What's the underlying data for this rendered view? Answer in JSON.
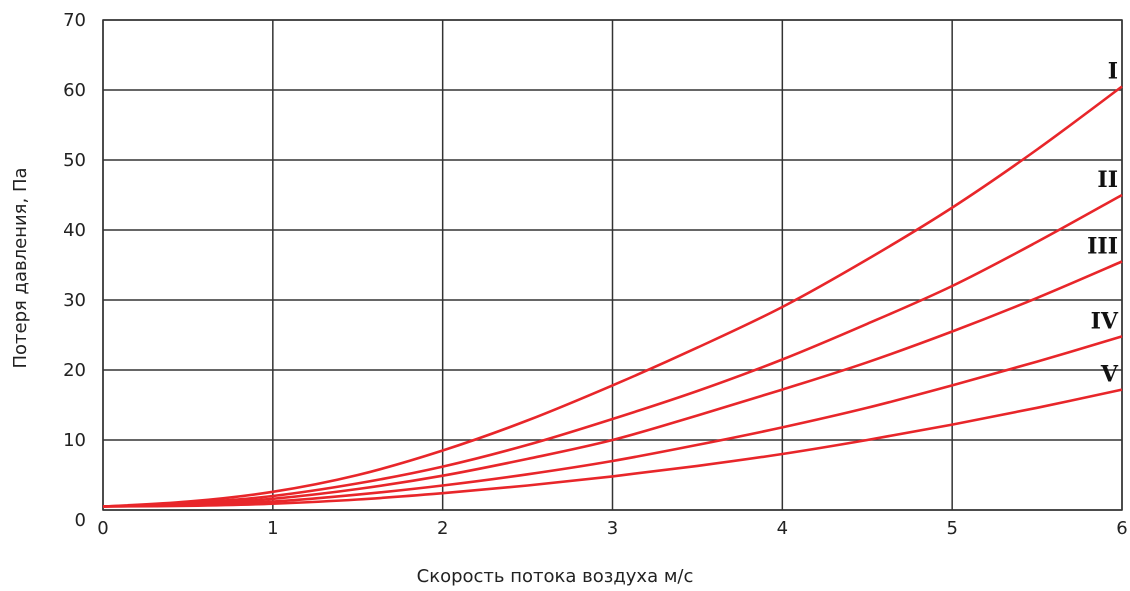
{
  "chart_data": {
    "type": "line",
    "title": "",
    "xlabel": "Скорость потока воздуха м/с",
    "ylabel": "Потеря давления, Па",
    "xlim": [
      0,
      6
    ],
    "ylim": [
      0,
      70
    ],
    "x_ticks": [
      "0",
      "1",
      "2",
      "3",
      "4",
      "5",
      "6"
    ],
    "y_ticks": [
      "0",
      "10",
      "20",
      "30",
      "40",
      "50",
      "60",
      "70"
    ],
    "grid": true,
    "line_color": "#e8262a",
    "x": [
      0,
      0.5,
      1,
      1.5,
      2,
      2.5,
      3,
      3.5,
      4,
      4.5,
      5,
      5.5,
      6
    ],
    "series": [
      {
        "name": "I",
        "values": [
          0.5,
          1.2,
          2.6,
          5.0,
          8.5,
          12.8,
          17.8,
          23.2,
          29.0,
          35.8,
          43.2,
          51.5,
          60.5
        ]
      },
      {
        "name": "II",
        "values": [
          0.5,
          1.0,
          2.0,
          3.8,
          6.2,
          9.3,
          13.0,
          17.0,
          21.5,
          26.6,
          32.0,
          38.3,
          45.0
        ]
      },
      {
        "name": "III",
        "values": [
          0.5,
          0.8,
          1.6,
          3.0,
          4.9,
          7.3,
          10.0,
          13.5,
          17.2,
          21.1,
          25.5,
          30.3,
          35.5
        ]
      },
      {
        "name": "IV",
        "values": [
          0.5,
          0.7,
          1.2,
          2.2,
          3.5,
          5.1,
          7.0,
          9.3,
          11.8,
          14.6,
          17.8,
          21.2,
          24.8
        ]
      },
      {
        "name": "V",
        "values": [
          0.5,
          0.6,
          0.9,
          1.5,
          2.4,
          3.5,
          4.8,
          6.3,
          8.0,
          10.0,
          12.2,
          14.6,
          17.2
        ]
      }
    ]
  }
}
